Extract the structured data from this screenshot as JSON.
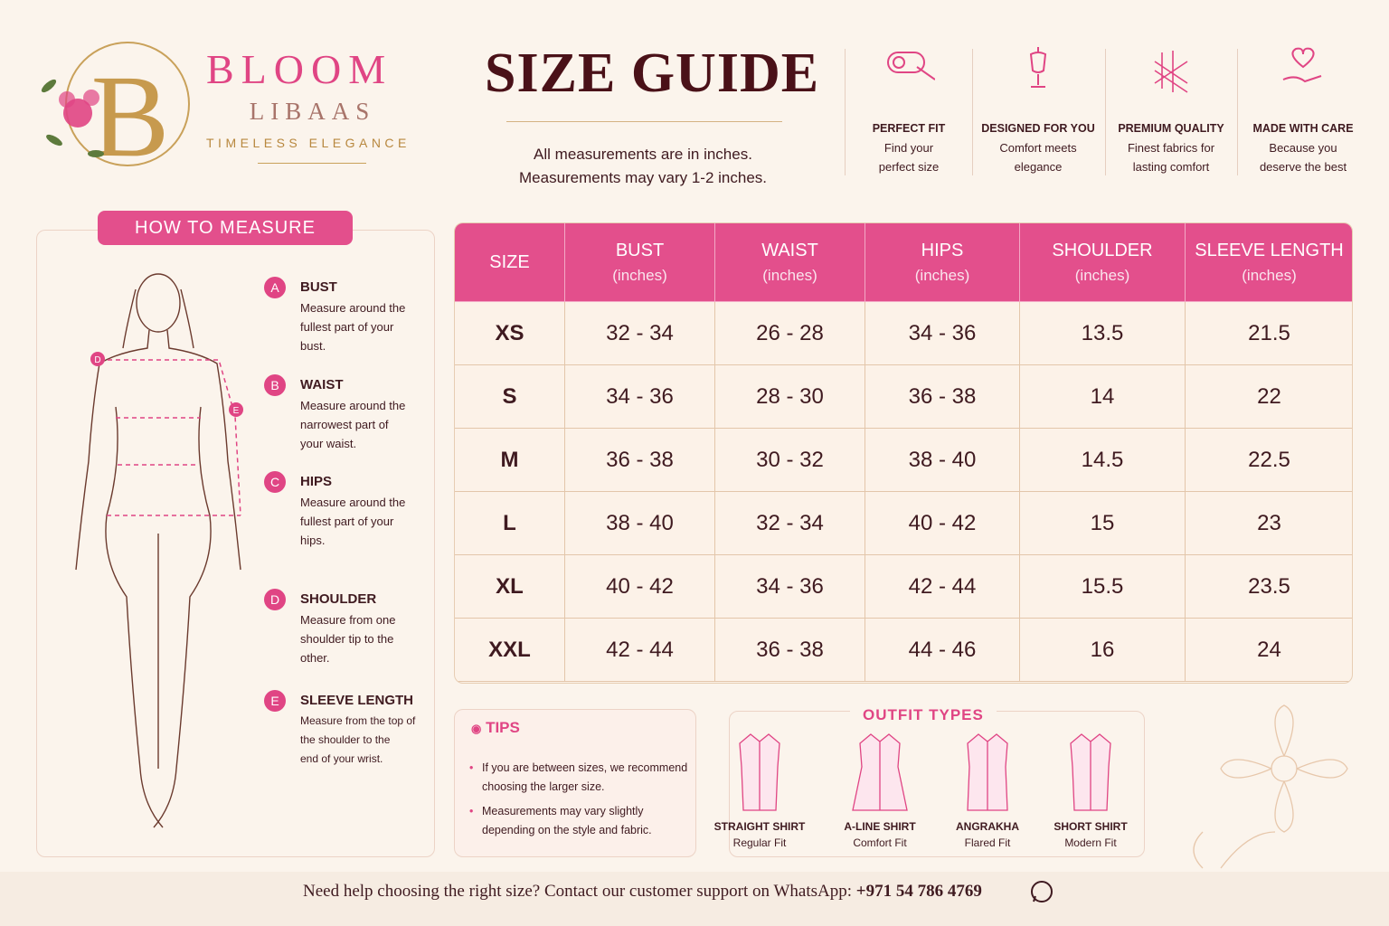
{
  "brand": {
    "initial": "B",
    "name": "BLOOM",
    "sub": "LIBAAS",
    "tagline": "TIMELESS ELEGANCE"
  },
  "header": {
    "title": "SIZE GUIDE",
    "notes": [
      "All measurements are in inches.",
      "Measurements may vary 1-2 inches."
    ]
  },
  "features": [
    {
      "title": "PERFECT FIT",
      "lines": [
        "Find your",
        "perfect size"
      ]
    },
    {
      "title": "DESIGNED FOR YOU",
      "lines": [
        "Comfort meets",
        "elegance"
      ]
    },
    {
      "title": "PREMIUM QUALITY",
      "lines": [
        "Finest fabrics for",
        "lasting comfort"
      ]
    },
    {
      "title": "MADE WITH CARE",
      "lines": [
        "Because you",
        "deserve the best"
      ]
    }
  ],
  "how_to_measure": {
    "title": "HOW TO MEASURE",
    "steps": [
      {
        "letter": "A",
        "name": "BUST",
        "lines": [
          "Measure around the",
          "fullest part of your",
          "bust."
        ]
      },
      {
        "letter": "B",
        "name": "WAIST",
        "lines": [
          "Measure around the",
          "narrowest part of",
          "your waist."
        ]
      },
      {
        "letter": "C",
        "name": "HIPS",
        "lines": [
          "Measure around the",
          "fullest part of your",
          "hips."
        ]
      },
      {
        "letter": "D",
        "name": "SHOULDER",
        "lines": [
          "Measure from one",
          "shoulder tip to the",
          "other."
        ]
      },
      {
        "letter": "E",
        "name": "SLEEVE LENGTH",
        "lines": [
          "Measure from the top of",
          "the shoulder to the",
          "end of your wrist."
        ]
      }
    ]
  },
  "table": {
    "header": [
      {
        "name": "SIZE"
      },
      {
        "name": "BUST",
        "unit": "(inches)"
      },
      {
        "name": "WAIST",
        "unit": "(inches)"
      },
      {
        "name": "HIPS",
        "unit": "(inches)"
      },
      {
        "name": "SHOULDER",
        "unit": "(inches)"
      },
      {
        "name": "SLEEVE LENGTH",
        "unit": "(inches)"
      }
    ],
    "rows": [
      [
        "XS",
        "32 - 34",
        "26 - 28",
        "34 - 36",
        "13.5",
        "21.5"
      ],
      [
        "S",
        "34 - 36",
        "28 - 30",
        "36 - 38",
        "14",
        "22"
      ],
      [
        "M",
        "36 - 38",
        "30 - 32",
        "38 - 40",
        "14.5",
        "22.5"
      ],
      [
        "L",
        "38 - 40",
        "32 - 34",
        "40 - 42",
        "15",
        "23"
      ],
      [
        "XL",
        "40 - 42",
        "34 - 36",
        "42 - 44",
        "15.5",
        "23.5"
      ],
      [
        "XXL",
        "42 - 44",
        "36 - 38",
        "44 - 46",
        "16",
        "24"
      ]
    ]
  },
  "tips": {
    "title": "TIPS",
    "items": [
      [
        "If you are between sizes, we recommend",
        "choosing the larger size."
      ],
      [
        "Measurements may vary slightly",
        "depending on the style and fabric."
      ]
    ]
  },
  "outfits": {
    "title": "OUTFIT TYPES",
    "items": [
      {
        "name": "STRAIGHT SHIRT",
        "fit": "Regular Fit"
      },
      {
        "name": "A-LINE SHIRT",
        "fit": "Comfort Fit"
      },
      {
        "name": "ANGRAKHA",
        "fit": "Flared Fit"
      },
      {
        "name": "SHORT SHIRT",
        "fit": "Modern Fit"
      }
    ]
  },
  "footer": {
    "text": "Need help choosing the right size? Contact our customer support on WhatsApp:",
    "phone": "+971 54 786 4769"
  }
}
